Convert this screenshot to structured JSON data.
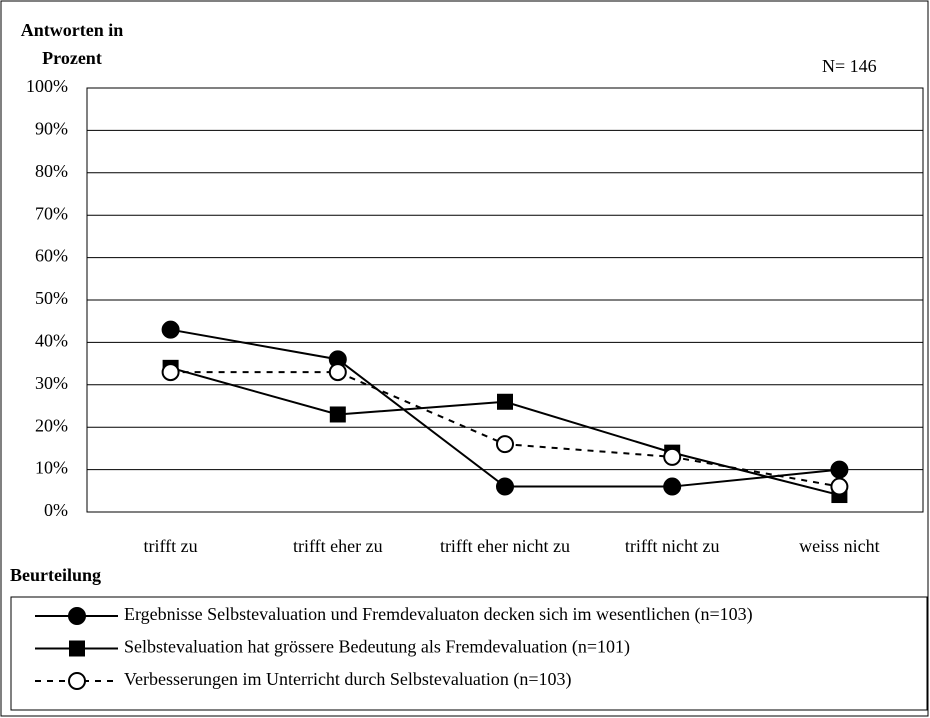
{
  "chart_data": {
    "type": "line",
    "y_label": "Antworten in Prozent",
    "x_label": "Beurteilung",
    "annotation": "N= 146",
    "categories": [
      "trifft zu",
      "trifft eher zu",
      "trifft eher nicht zu",
      "trifft nicht zu",
      "weiss nicht"
    ],
    "series": [
      {
        "name": "Ergebnisse Selbstevaluation und Fremdevaluaton decken sich im wesentlichen (n=103)",
        "color": "#000000",
        "marker": "circle",
        "linestyle": "solid",
        "values": [
          43,
          36,
          6,
          6,
          10
        ]
      },
      {
        "name": "Selbstevaluation hat grössere Bedeutung als Fremdevaluation (n=101)",
        "color": "#000000",
        "marker": "square",
        "linestyle": "solid",
        "values": [
          34,
          23,
          26,
          14,
          4
        ]
      },
      {
        "name": "Verbesserungen im Unterricht durch Selbstevaluation (n=103)",
        "color": "#000000",
        "marker": "open-circle",
        "linestyle": "dashed",
        "values": [
          33,
          33,
          16,
          13,
          6
        ]
      }
    ],
    "ylim": [
      0,
      100
    ],
    "yticks": [
      {
        "value": 0,
        "label": "0%"
      },
      {
        "value": 10,
        "label": "10%"
      },
      {
        "value": 20,
        "label": "20%"
      },
      {
        "value": 30,
        "label": "30%"
      },
      {
        "value": 40,
        "label": "40%"
      },
      {
        "value": 50,
        "label": "50%"
      },
      {
        "value": 60,
        "label": "60%"
      },
      {
        "value": 70,
        "label": "70%"
      },
      {
        "value": 80,
        "label": "80%"
      },
      {
        "value": 90,
        "label": "90%"
      },
      {
        "value": 100,
        "label": "100%"
      }
    ],
    "grid": true,
    "legend": "bottom"
  }
}
